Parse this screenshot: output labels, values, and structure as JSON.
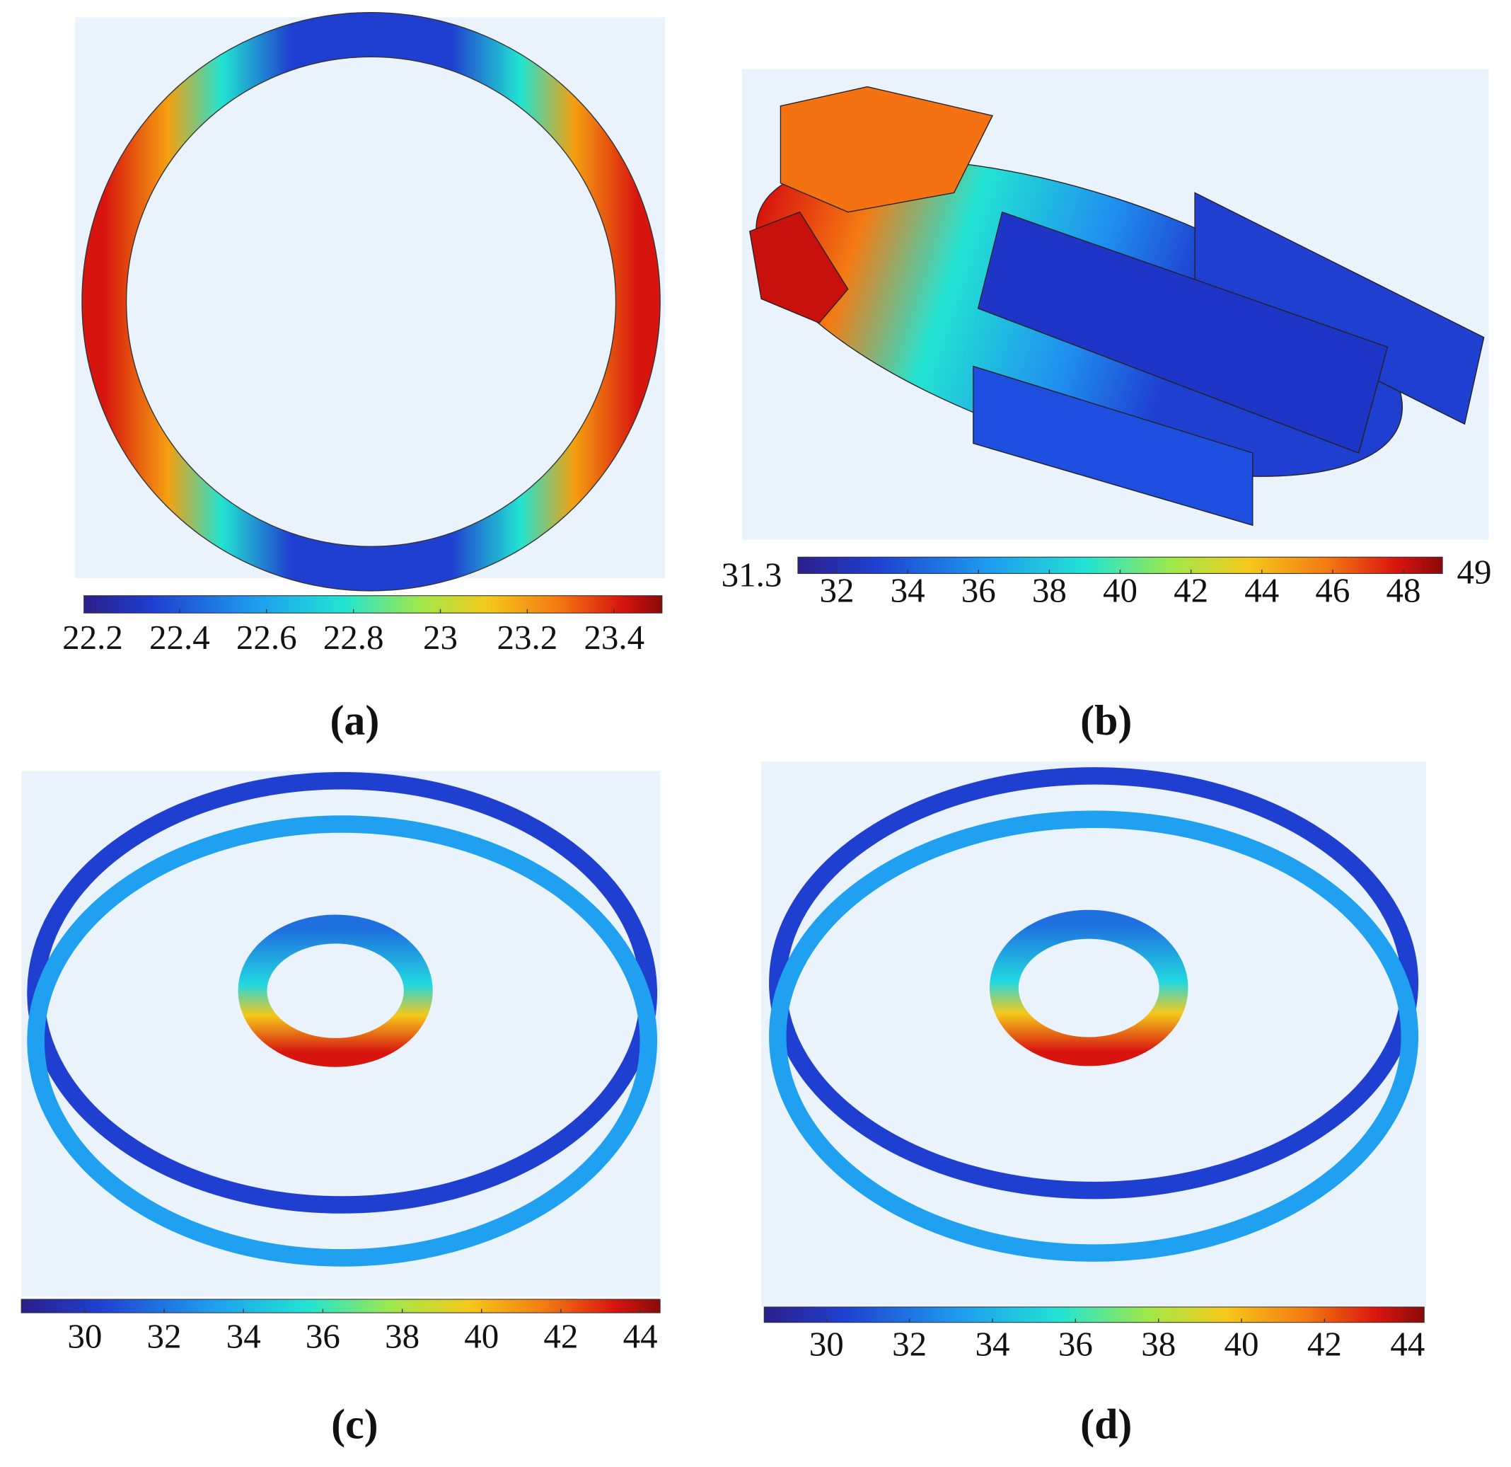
{
  "panels": [
    {
      "label": "(a)",
      "colorbar": {
        "range": [
          22.18,
          23.51
        ],
        "ticks": [
          22.2,
          22.4,
          22.6,
          22.8,
          23,
          23.2,
          23.4
        ]
      }
    },
    {
      "label": "(b)",
      "colorbar": {
        "range": [
          30.9,
          49.1
        ],
        "ticks": [
          32,
          34,
          36,
          38,
          40,
          42,
          44,
          46,
          48
        ],
        "min": 31.3,
        "max": 49
      }
    },
    {
      "label": "(c)",
      "colorbar": {
        "range": [
          28.4,
          44.5
        ],
        "ticks": [
          30,
          32,
          34,
          36,
          38,
          40,
          42,
          44
        ]
      }
    },
    {
      "label": "(d)",
      "colorbar": {
        "range": [
          28.5,
          44.4
        ],
        "ticks": [
          30,
          32,
          34,
          36,
          38,
          40,
          42,
          44
        ]
      }
    }
  ]
}
